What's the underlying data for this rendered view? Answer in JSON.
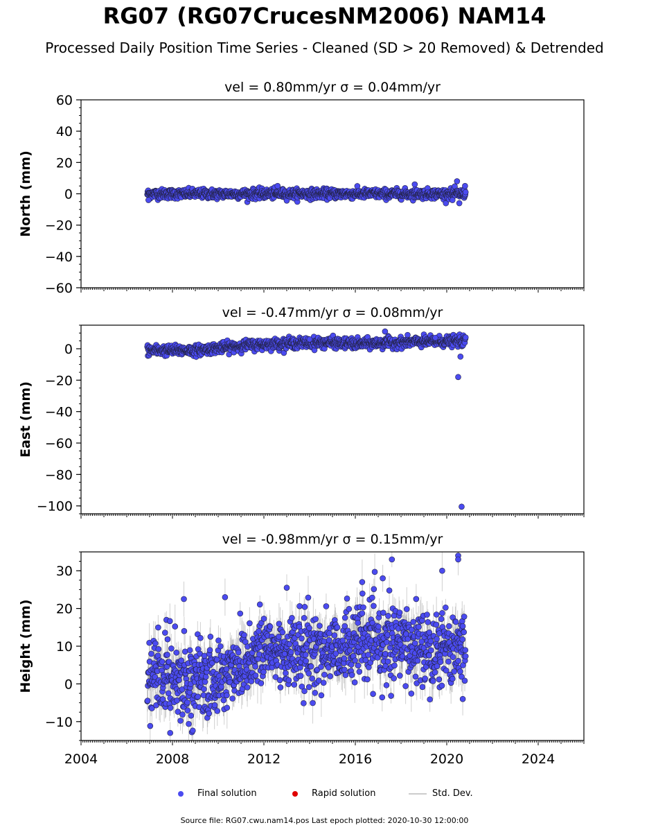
{
  "figure": {
    "title": "RG07 (RG07CrucesNM2006) NAM14",
    "subtitle": "Processed Daily Position Time Series - Cleaned (SD > 20 Removed) & Detrended"
  },
  "legend": {
    "final": "Final solution",
    "rapid": "Rapid solution",
    "stddev": "Std. Dev."
  },
  "footer": "Source file: RG07.cwu.nam14.pos  Last epoch plotted: 2020-10-30 12:00:00",
  "colors": {
    "final": "#4b4bf0",
    "rapid": "#e00000",
    "stddev": "#bbbbbb"
  },
  "chart_data": [
    {
      "type": "scatter",
      "panel_title": "vel = 0.80mm/yr   σ = 0.04mm/yr",
      "ylabel": "North (mm)",
      "xlim": [
        2004,
        2026
      ],
      "ylim": [
        -60,
        60
      ],
      "xticks": [
        2004,
        2008,
        2012,
        2016,
        2020,
        2024
      ],
      "yticks": [
        -60,
        -40,
        -20,
        0,
        20,
        40,
        60
      ],
      "x_range": [
        2006.9,
        2020.83
      ],
      "trend": [
        [
          2006.9,
          0
        ],
        [
          2020.83,
          0
        ]
      ],
      "spread": 1.5,
      "outliers": [
        [
          2006.95,
          -4
        ],
        [
          2012.6,
          5
        ],
        [
          2018.6,
          6
        ],
        [
          2020.25,
          -4
        ],
        [
          2020.45,
          8
        ],
        [
          2020.55,
          -6
        ],
        [
          2020.8,
          5
        ]
      ],
      "series": [
        {
          "name": "Final solution"
        }
      ]
    },
    {
      "type": "scatter",
      "panel_title": "vel = -0.47mm/yr   σ = 0.08mm/yr",
      "ylabel": "East (mm)",
      "xlim": [
        2004,
        2026
      ],
      "ylim": [
        -105,
        15
      ],
      "xticks": [
        2004,
        2008,
        2012,
        2016,
        2020,
        2024
      ],
      "yticks": [
        -100,
        -80,
        -60,
        -40,
        -20,
        0
      ],
      "x_range": [
        2006.9,
        2020.83
      ],
      "trend": [
        [
          2006.9,
          -1
        ],
        [
          2009,
          -1
        ],
        [
          2011,
          2
        ],
        [
          2013,
          3.5
        ],
        [
          2015,
          4
        ],
        [
          2016,
          3
        ],
        [
          2018,
          4
        ],
        [
          2020.83,
          5
        ]
      ],
      "spread": 1.6,
      "outliers": [
        [
          2017.3,
          11
        ],
        [
          2020.5,
          -18
        ],
        [
          2020.6,
          -5
        ],
        [
          2020.65,
          -100.5
        ],
        [
          2019.5,
          7
        ],
        [
          2014,
          6
        ]
      ],
      "series": [
        {
          "name": "Final solution"
        }
      ]
    },
    {
      "type": "scatter",
      "panel_title": "vel = -0.98mm/yr   σ = 0.15mm/yr",
      "ylabel": "Height (mm)",
      "xlim": [
        2004,
        2026
      ],
      "ylim": [
        -15,
        35
      ],
      "xticks": [
        2004,
        2008,
        2012,
        2016,
        2020,
        2024
      ],
      "yticks": [
        -10,
        0,
        10,
        20,
        30
      ],
      "x_range": [
        2006.9,
        2020.83
      ],
      "trend": [
        [
          2006.9,
          2
        ],
        [
          2008,
          3
        ],
        [
          2009,
          0
        ],
        [
          2010,
          1
        ],
        [
          2011,
          6
        ],
        [
          2012,
          9
        ],
        [
          2014,
          8
        ],
        [
          2016,
          11
        ],
        [
          2018,
          10
        ],
        [
          2020.83,
          10
        ]
      ],
      "spread": 5,
      "outliers": [
        [
          2008.5,
          22.5
        ],
        [
          2007.9,
          -13
        ],
        [
          2010.3,
          23
        ],
        [
          2013,
          25.5
        ],
        [
          2017.2,
          28
        ],
        [
          2017.6,
          33
        ],
        [
          2019.8,
          30
        ],
        [
          2020.5,
          34
        ],
        [
          2020.5,
          33
        ],
        [
          2020.7,
          -4
        ],
        [
          2016.3,
          27
        ]
      ],
      "series": [
        {
          "name": "Final solution"
        }
      ]
    }
  ]
}
